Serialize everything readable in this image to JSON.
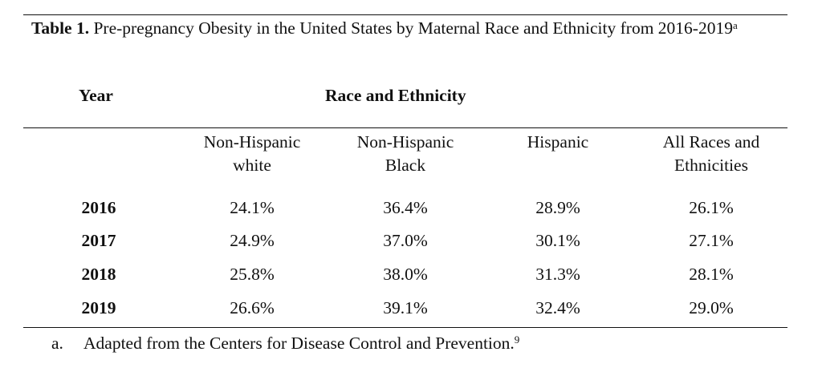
{
  "table": {
    "caption_label": "Table 1.",
    "caption_text": "Pre-pregnancy Obesity in the United States by Maternal Race and Ethnicity from 2016-2019",
    "caption_superscript": "a",
    "year_header": "Year",
    "group_header": "Race and Ethnicity",
    "columns": [
      {
        "line1": "Non-Hispanic",
        "line2": "white"
      },
      {
        "line1": "Non-Hispanic",
        "line2": "Black"
      },
      {
        "line1": "Hispanic",
        "line2": ""
      },
      {
        "line1": "All Races and",
        "line2": "Ethnicities"
      }
    ],
    "rows": [
      {
        "year": "2016",
        "values": [
          "24.1%",
          "36.4%",
          "28.9%",
          "26.1%"
        ]
      },
      {
        "year": "2017",
        "values": [
          "24.9%",
          "37.0%",
          "30.1%",
          "27.1%"
        ]
      },
      {
        "year": "2018",
        "values": [
          "25.8%",
          "38.0%",
          "31.3%",
          "28.1%"
        ]
      },
      {
        "year": "2019",
        "values": [
          "26.6%",
          "39.1%",
          "32.4%",
          "29.0%"
        ]
      }
    ]
  },
  "footnote": {
    "marker": "a.",
    "text": "Adapted from the Centers for Disease Control and Prevention.",
    "superscript": "9"
  }
}
